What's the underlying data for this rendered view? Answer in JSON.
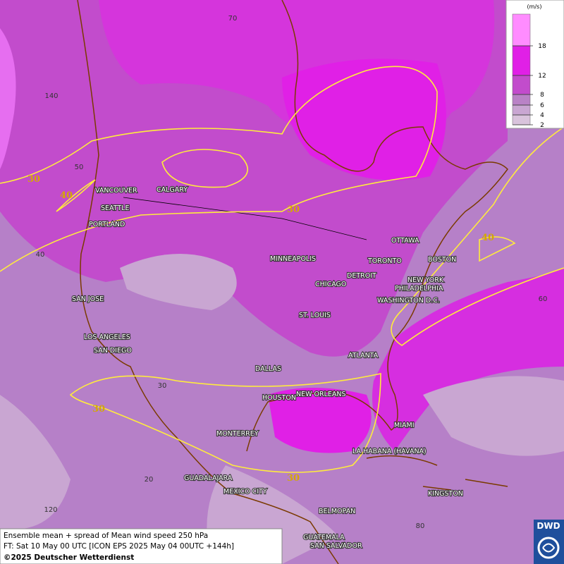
{
  "map": {
    "cities": [
      "VANCOUVER",
      "CALGARY",
      "SEATTLE",
      "PORTLAND",
      "MINNEAPOLIS",
      "OTTAWA",
      "TORONTO",
      "DETROIT",
      "BOSTON",
      "NEW YORK",
      "PHILADELPHIA",
      "CHICAGO",
      "WASHINGTON D.C.",
      "SAN JOSE",
      "ST. LOUIS",
      "LOS ANGELES",
      "SAN DIEGO",
      "ATLANTA",
      "DALLAS",
      "HOUSTON",
      "NEW ORLEANS",
      "MIAMI",
      "MONTERREY",
      "LA HABANA (HAVANA)",
      "GUADALAJARA",
      "MEXICO CITY",
      "KINGSTON",
      "BELMOPAN",
      "GUATEMALA",
      "SAN SALVADOR"
    ],
    "contour_labels": [
      30,
      40,
      30,
      40,
      30,
      30
    ],
    "graticule_labels": [
      70,
      140,
      50,
      40,
      60,
      30,
      20,
      120,
      80
    ]
  },
  "legend": {
    "unit": "(m/s)",
    "levels": [
      2,
      4,
      6,
      8,
      12,
      18
    ],
    "colors": [
      "#d9c3dc",
      "#c9a6d2",
      "#b982c6",
      "#c24ccc",
      "#e020e6",
      "#ff8cff"
    ]
  },
  "footer": {
    "title": "Ensemble mean + spread of Mean wind speed 250 hPa",
    "forecast": "FT: Sat 10 May 00 UTC [ICON EPS 2025 May 04 00UTC +144h]",
    "copyright": "©2025 Deutscher Wetterdienst"
  },
  "logo": "DWD"
}
